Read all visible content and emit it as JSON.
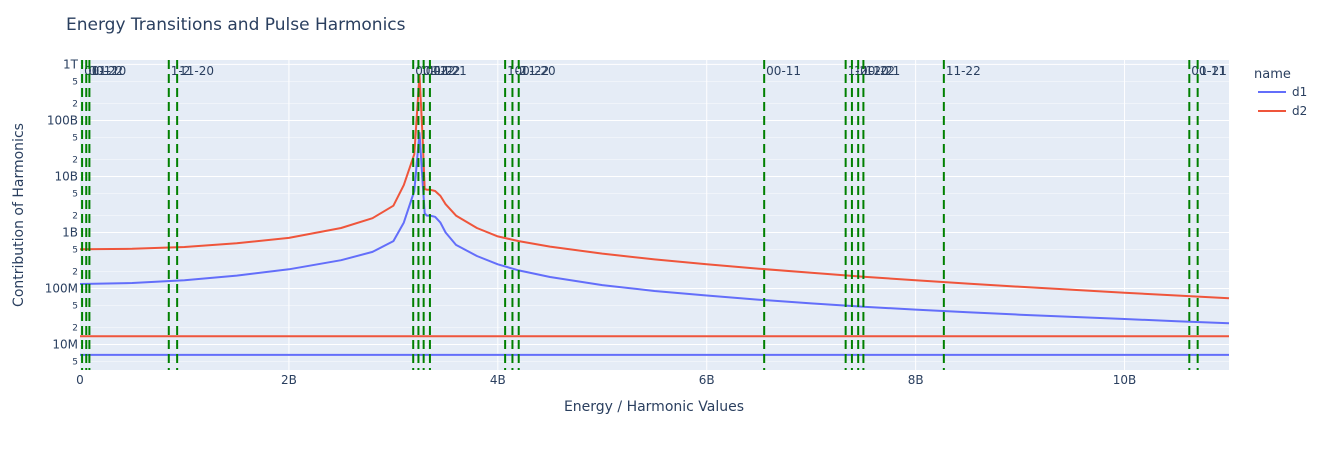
{
  "chart_data": {
    "type": "line",
    "title": "Energy Transitions and Pulse Harmonics",
    "xlabel": "Energy / Harmonic Values",
    "ylabel": "Contribution of Harmonics",
    "y_scale": "log",
    "xlim": [
      0,
      11000000000
    ],
    "ylim": [
      3500000,
      1200000000000
    ],
    "x_ticks": [
      {
        "value": 0,
        "label": "0"
      },
      {
        "value": 2000000000,
        "label": "2B"
      },
      {
        "value": 4000000000,
        "label": "4B"
      },
      {
        "value": 6000000000,
        "label": "6B"
      },
      {
        "value": 8000000000,
        "label": "8B"
      },
      {
        "value": 10000000000,
        "label": "10B"
      }
    ],
    "y_major_ticks": [
      {
        "value": 10000000,
        "label": "10M"
      },
      {
        "value": 100000000,
        "label": "100M"
      },
      {
        "value": 1000000000,
        "label": "1B"
      },
      {
        "value": 10000000000,
        "label": "10B"
      },
      {
        "value": 100000000000,
        "label": "100B"
      },
      {
        "value": 1000000000000,
        "label": "1T"
      }
    ],
    "y_minor_ticks": [
      {
        "value": 5000000,
        "label": "5"
      },
      {
        "value": 20000000,
        "label": "2"
      },
      {
        "value": 50000000,
        "label": "5"
      },
      {
        "value": 200000000,
        "label": "2"
      },
      {
        "value": 500000000,
        "label": "5"
      },
      {
        "value": 2000000000,
        "label": "2"
      },
      {
        "value": 5000000000,
        "label": "5"
      },
      {
        "value": 20000000000,
        "label": "2"
      },
      {
        "value": 50000000000,
        "label": "5"
      },
      {
        "value": 200000000000,
        "label": "2"
      },
      {
        "value": 500000000000,
        "label": "5"
      }
    ],
    "grid": true,
    "legend": {
      "title": "name",
      "placement": "right"
    },
    "series": [
      {
        "name": "d1",
        "color": "#636efa",
        "x": [
          0,
          500000000,
          1000000000,
          1500000000,
          2000000000,
          2500000000,
          2800000000,
          3000000000,
          3100000000,
          3200000000,
          3250000000,
          3280000000,
          3300000000,
          3320000000,
          3350000000,
          3400000000,
          3450000000,
          3500000000,
          3600000000,
          3800000000,
          4000000000,
          4200000000,
          4500000000,
          5000000000,
          5500000000,
          6000000000,
          6500000000,
          7000000000,
          7500000000,
          8000000000,
          8500000000,
          9000000000,
          9500000000,
          10000000000,
          10500000000,
          11000000000
        ],
        "y": [
          120000000,
          125000000,
          140000000,
          170000000,
          220000000,
          320000000,
          450000000,
          700000000,
          1500000000,
          5500000000,
          60000000000,
          8000000000,
          2200000000,
          2000000000,
          2000000000,
          1900000000,
          1500000000,
          1000000000,
          600000000,
          380000000,
          270000000,
          210000000,
          160000000,
          115000000,
          90000000,
          75000000,
          63000000,
          54000000,
          47000000,
          42000000,
          37500000,
          34000000,
          31000000,
          28500000,
          26000000,
          24000000
        ]
      },
      {
        "name": "d2",
        "color": "#ef553b",
        "x": [
          0,
          500000000,
          1000000000,
          1500000000,
          2000000000,
          2500000000,
          2800000000,
          3000000000,
          3100000000,
          3200000000,
          3250000000,
          3280000000,
          3300000000,
          3320000000,
          3350000000,
          3400000000,
          3450000000,
          3500000000,
          3600000000,
          3800000000,
          4000000000,
          4200000000,
          4500000000,
          5000000000,
          5500000000,
          6000000000,
          6500000000,
          7000000000,
          7500000000,
          8000000000,
          8500000000,
          9000000000,
          9500000000,
          10000000000,
          10500000000,
          11000000000
        ],
        "y": [
          500000000,
          510000000,
          550000000,
          640000000,
          800000000,
          1200000000,
          1800000000,
          3000000000,
          7000000000,
          25000000000,
          650000000000,
          50000000000,
          6000000000,
          5800000000,
          5800000000,
          5500000000,
          4500000000,
          3200000000,
          2000000000,
          1200000000,
          850000000,
          700000000,
          560000000,
          420000000,
          330000000,
          270000000,
          225000000,
          190000000,
          162000000,
          140000000,
          122000000,
          107000000,
          95000000,
          84000000,
          75000000,
          67000000
        ]
      },
      {
        "name": "",
        "color": "#636efa",
        "x": [
          0,
          11000000000
        ],
        "y": [
          6500000,
          6500000
        ],
        "showlegend": false
      },
      {
        "name": "",
        "color": "#ef553b",
        "x": [
          0,
          11000000000
        ],
        "y": [
          14000000,
          14000000
        ],
        "showlegend": false
      }
    ],
    "vlines": {
      "color": "#008000",
      "style": "dash",
      "lines": [
        {
          "x": 20000000,
          "label": "00-11"
        },
        {
          "x": 60000000,
          "label": "00-22"
        },
        {
          "x": 90000000,
          "label": "11-20"
        },
        {
          "x": 850000000,
          "label": "1-2"
        },
        {
          "x": 930000000,
          "label": "11-20"
        },
        {
          "x": 3190000000,
          "label": "00-11"
        },
        {
          "x": 3240000000,
          "label": "11-22"
        },
        {
          "x": 3290000000,
          "label": "00-22"
        },
        {
          "x": 3350000000,
          "label": "11-21"
        },
        {
          "x": 4070000000,
          "label": "1-2"
        },
        {
          "x": 4140000000,
          "label": "00-22"
        },
        {
          "x": 4200000000,
          "label": "11-20"
        },
        {
          "x": 6550000000,
          "label": "00-11"
        },
        {
          "x": 7330000000,
          "label": "1-2"
        },
        {
          "x": 7390000000,
          "label": "11-20"
        },
        {
          "x": 7450000000,
          "label": "00-22"
        },
        {
          "x": 7500000000,
          "label": "11-21"
        },
        {
          "x": 8270000000,
          "label": "11-22"
        },
        {
          "x": 10620000000,
          "label": "00-11"
        },
        {
          "x": 10700000000,
          "label": "1-21"
        }
      ]
    }
  }
}
